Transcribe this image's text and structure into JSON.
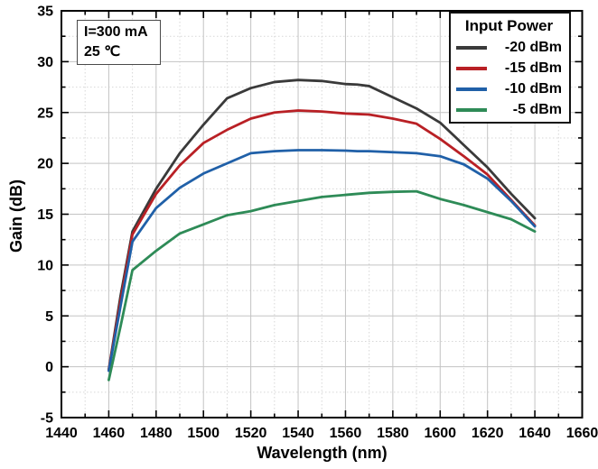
{
  "chart_data": {
    "type": "line",
    "title": "",
    "xlabel": "Wavelength (nm)",
    "ylabel": "Gain (dB)",
    "xlim": [
      1440,
      1660
    ],
    "ylim": [
      -5,
      35
    ],
    "x_ticks": [
      1440,
      1460,
      1480,
      1500,
      1520,
      1540,
      1560,
      1580,
      1600,
      1620,
      1640,
      1660
    ],
    "y_ticks": [
      -5,
      0,
      5,
      10,
      15,
      20,
      25,
      30,
      35
    ],
    "x_major_step": 20,
    "x_minor_step": 10,
    "y_major_step": 5,
    "y_minor_step": 2.5,
    "grid": true,
    "grid_major_color": "#c3c3c3",
    "grid_minor_color": "#d7d7d7",
    "axis_color": "#000000",
    "legend_position": "top-right",
    "legend_title": "Input Power",
    "annotations": [
      "I=300 mA",
      "25 ℃"
    ],
    "x": [
      1460,
      1465,
      1470,
      1480,
      1490,
      1500,
      1510,
      1520,
      1530,
      1540,
      1550,
      1560,
      1565,
      1570,
      1580,
      1590,
      1600,
      1610,
      1620,
      1630,
      1640
    ],
    "series": [
      {
        "name": "-20 dBm",
        "color": "#3a3a3a",
        "values": [
          -0.3,
          7.0,
          13.3,
          17.5,
          21.0,
          23.8,
          26.4,
          27.4,
          28.0,
          28.2,
          28.1,
          27.8,
          27.75,
          27.6,
          26.5,
          25.4,
          24.0,
          21.8,
          19.6,
          17.0,
          14.6
        ]
      },
      {
        "name": "-15 dBm",
        "color": "#b92025",
        "values": [
          -0.3,
          6.5,
          13.0,
          17.0,
          19.8,
          22.0,
          23.3,
          24.4,
          25.0,
          25.2,
          25.1,
          24.9,
          24.85,
          24.8,
          24.4,
          23.9,
          22.4,
          20.7,
          18.9,
          16.4,
          13.9
        ]
      },
      {
        "name": "-10 dBm",
        "color": "#2060a8",
        "values": [
          -0.4,
          6.0,
          12.3,
          15.6,
          17.6,
          19.0,
          20.0,
          21.0,
          21.2,
          21.3,
          21.3,
          21.25,
          21.2,
          21.2,
          21.1,
          21.0,
          20.7,
          19.9,
          18.5,
          16.3,
          13.8
        ]
      },
      {
        "name": "-5 dBm",
        "color": "#2e8b57",
        "values": [
          -1.3,
          4.0,
          9.5,
          11.4,
          13.1,
          14.0,
          14.9,
          15.3,
          15.9,
          16.3,
          16.7,
          16.9,
          17.0,
          17.1,
          17.2,
          17.25,
          16.5,
          15.9,
          15.2,
          14.5,
          13.3
        ]
      }
    ]
  }
}
